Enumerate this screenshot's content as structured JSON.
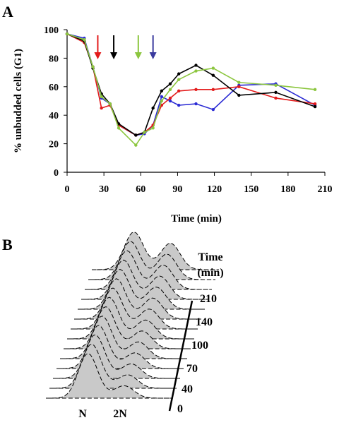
{
  "panel_a": {
    "letter": "A"
  },
  "panel_b": {
    "letter": "B",
    "time_title": "Time",
    "time_unit": "(min)",
    "time_labels": [
      "210",
      "140",
      "100",
      "70",
      "40",
      "0"
    ],
    "dna_labels": [
      "N",
      "2N"
    ],
    "trace_count": 14
  },
  "chart_data": {
    "type": "line",
    "xlabel": "Time (min)",
    "ylabel": "% unbudded cells (G1)",
    "xlim": [
      0,
      210
    ],
    "ylim": [
      0,
      100
    ],
    "xticks": [
      0,
      30,
      60,
      90,
      120,
      150,
      180,
      210
    ],
    "yticks": [
      0,
      20,
      40,
      60,
      80,
      100
    ],
    "grid": false,
    "legend": "none",
    "series": [
      {
        "color": "#2b2bd4",
        "x": [
          0,
          14,
          21,
          28,
          35,
          42,
          56,
          63,
          70,
          77,
          84,
          91,
          105,
          119,
          140,
          170,
          202
        ],
        "y": [
          97,
          94,
          74,
          52,
          48,
          33,
          26,
          27,
          33,
          53,
          50,
          47,
          48,
          44,
          61,
          62,
          47
        ]
      },
      {
        "color": "#e31b1b",
        "x": [
          0,
          14,
          21,
          28,
          35,
          42,
          56,
          63,
          70,
          77,
          84,
          91,
          105,
          119,
          140,
          170,
          202
        ],
        "y": [
          97,
          91,
          74,
          45,
          47,
          33,
          26,
          28,
          33,
          47,
          52,
          57,
          58,
          58,
          60,
          52,
          48
        ]
      },
      {
        "color": "#000000",
        "x": [
          0,
          14,
          21,
          28,
          35,
          42,
          56,
          63,
          70,
          77,
          84,
          91,
          105,
          119,
          140,
          170,
          202
        ],
        "y": [
          97,
          92,
          73,
          55,
          48,
          34,
          26,
          28,
          45,
          57,
          62,
          69,
          75,
          68,
          54,
          56,
          46
        ]
      },
      {
        "color": "#8cc63f",
        "x": [
          0,
          14,
          21,
          28,
          35,
          42,
          56,
          63,
          70,
          77,
          84,
          91,
          105,
          119,
          140,
          170,
          202
        ],
        "y": [
          97,
          93,
          74,
          53,
          48,
          31,
          19,
          28,
          31,
          50,
          58,
          65,
          71,
          73,
          63,
          61,
          58
        ]
      }
    ],
    "arrows": [
      {
        "x": 25,
        "color": "#e31b1b"
      },
      {
        "x": 38,
        "color": "#000000"
      },
      {
        "x": 58,
        "color": "#8cc63f"
      },
      {
        "x": 70,
        "color": "#3a3a9e"
      }
    ]
  }
}
